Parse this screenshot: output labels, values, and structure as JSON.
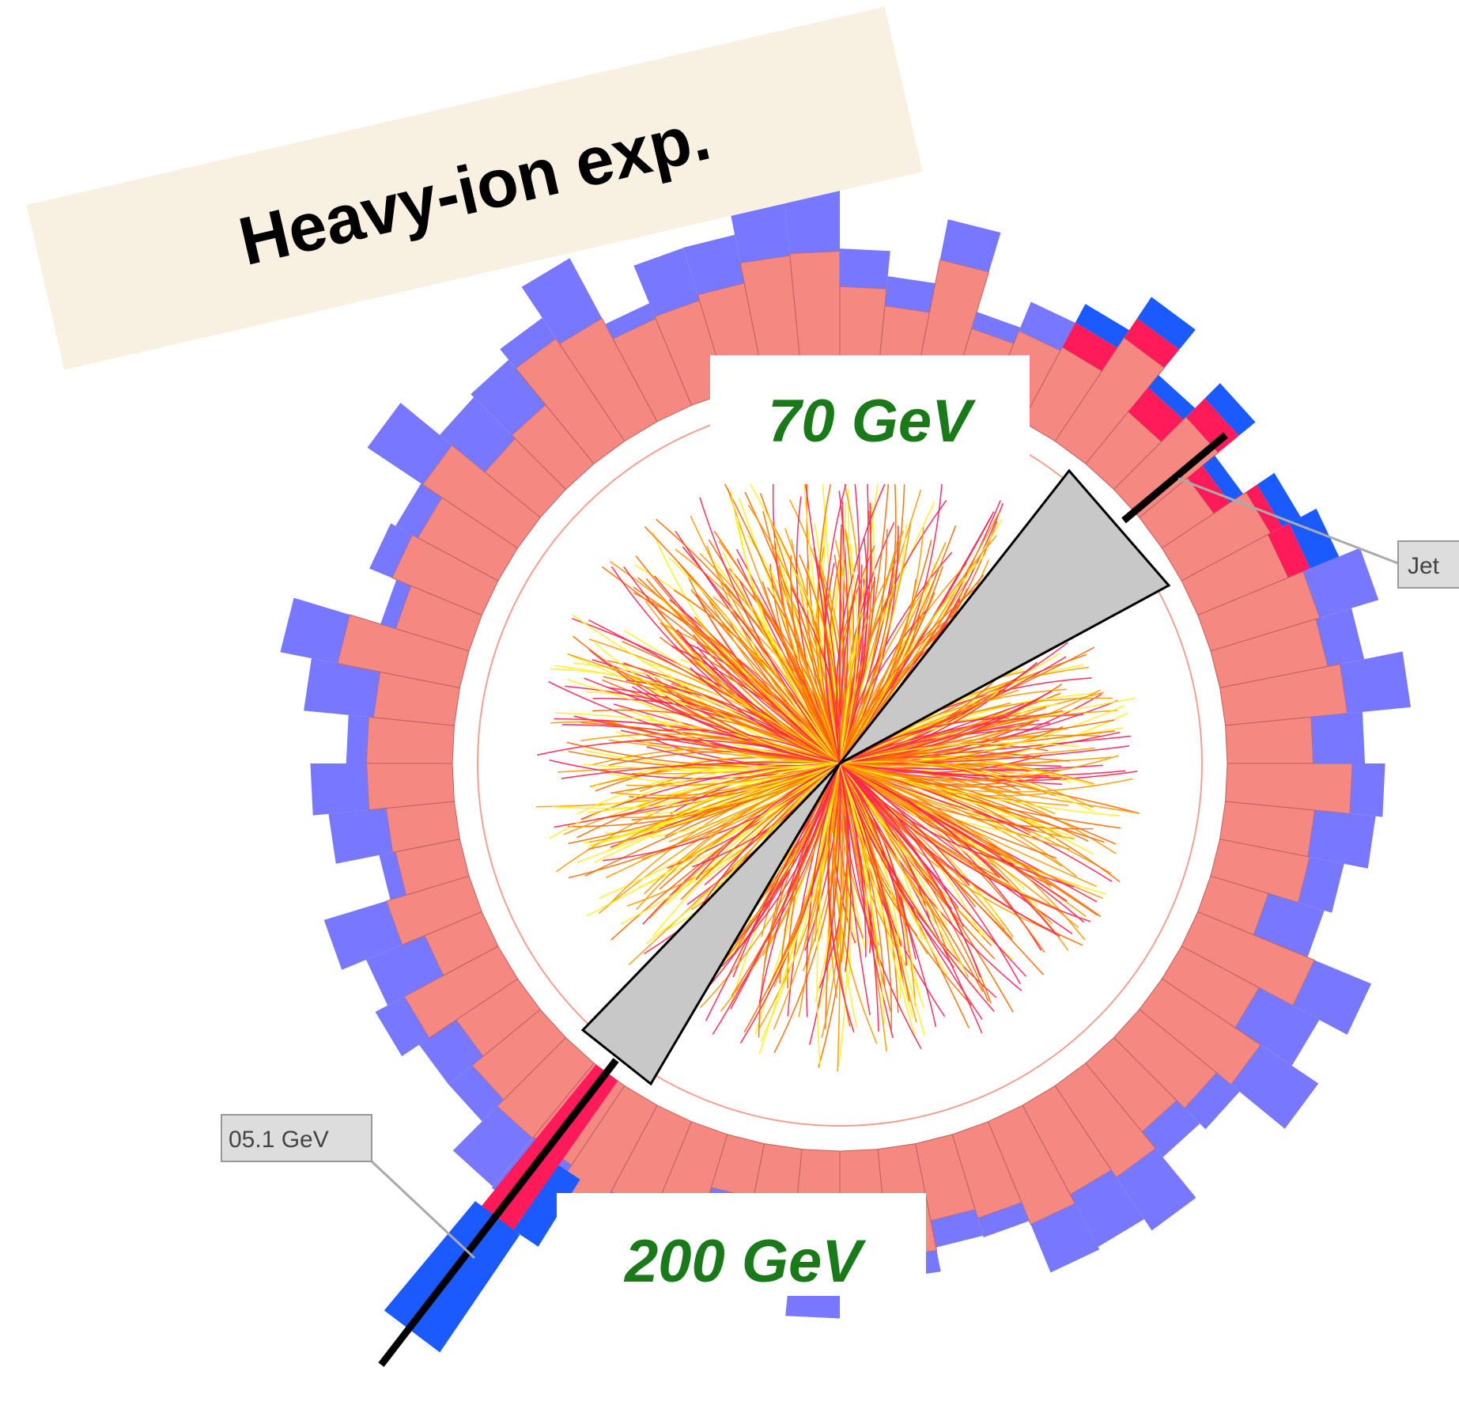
{
  "title": "Heavy-ion exp.",
  "energies": {
    "jet_top": "70 GeV",
    "jet_bottom": "200 GeV"
  },
  "tags": {
    "jet": "Jet",
    "energy": "05.1 GeV"
  }
}
